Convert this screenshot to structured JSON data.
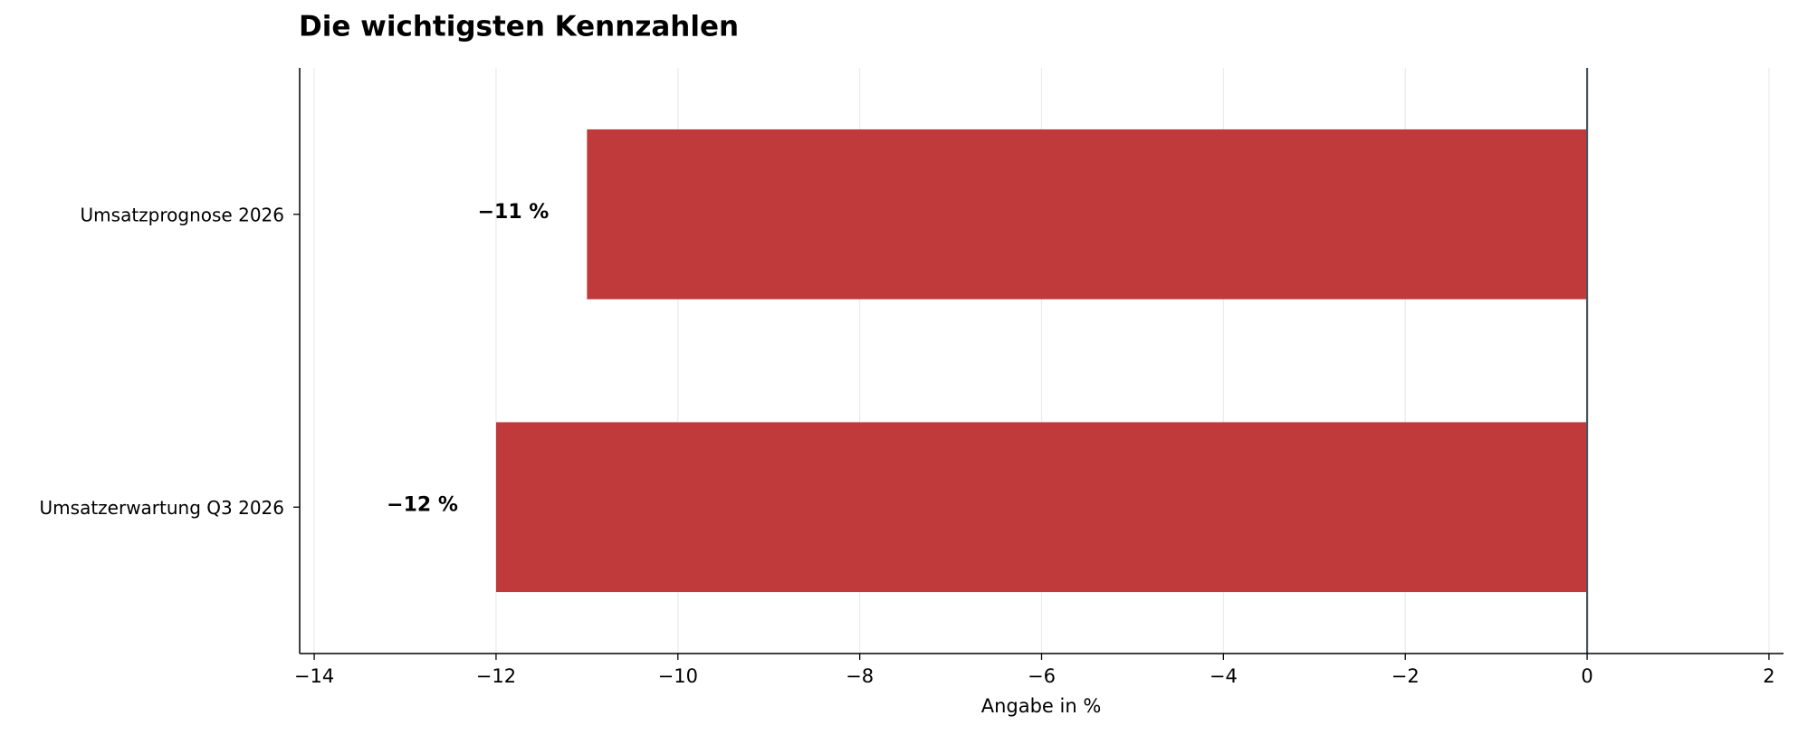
{
  "chart_data": {
    "type": "barh",
    "title": "Die wichtigsten Kennzahlen",
    "x_label": "Angabe in %",
    "categories": [
      "Umsatzprognose 2026",
      "Umsatzerwartung Q3 2026"
    ],
    "values": [
      -11,
      -12
    ],
    "value_labels": [
      "−11 %",
      "−12 %"
    ],
    "color": "#c0393b",
    "xlim": [
      -14.16,
      2.16
    ],
    "xticks": [
      {
        "value": -14,
        "label": "−14"
      },
      {
        "value": -12,
        "label": "−12"
      },
      {
        "value": -10,
        "label": "−10"
      },
      {
        "value": -8,
        "label": "−8"
      },
      {
        "value": -6,
        "label": "−6"
      },
      {
        "value": -4,
        "label": "−4"
      },
      {
        "value": -2,
        "label": "−2"
      },
      0,
      2
    ],
    "grid": true
  }
}
